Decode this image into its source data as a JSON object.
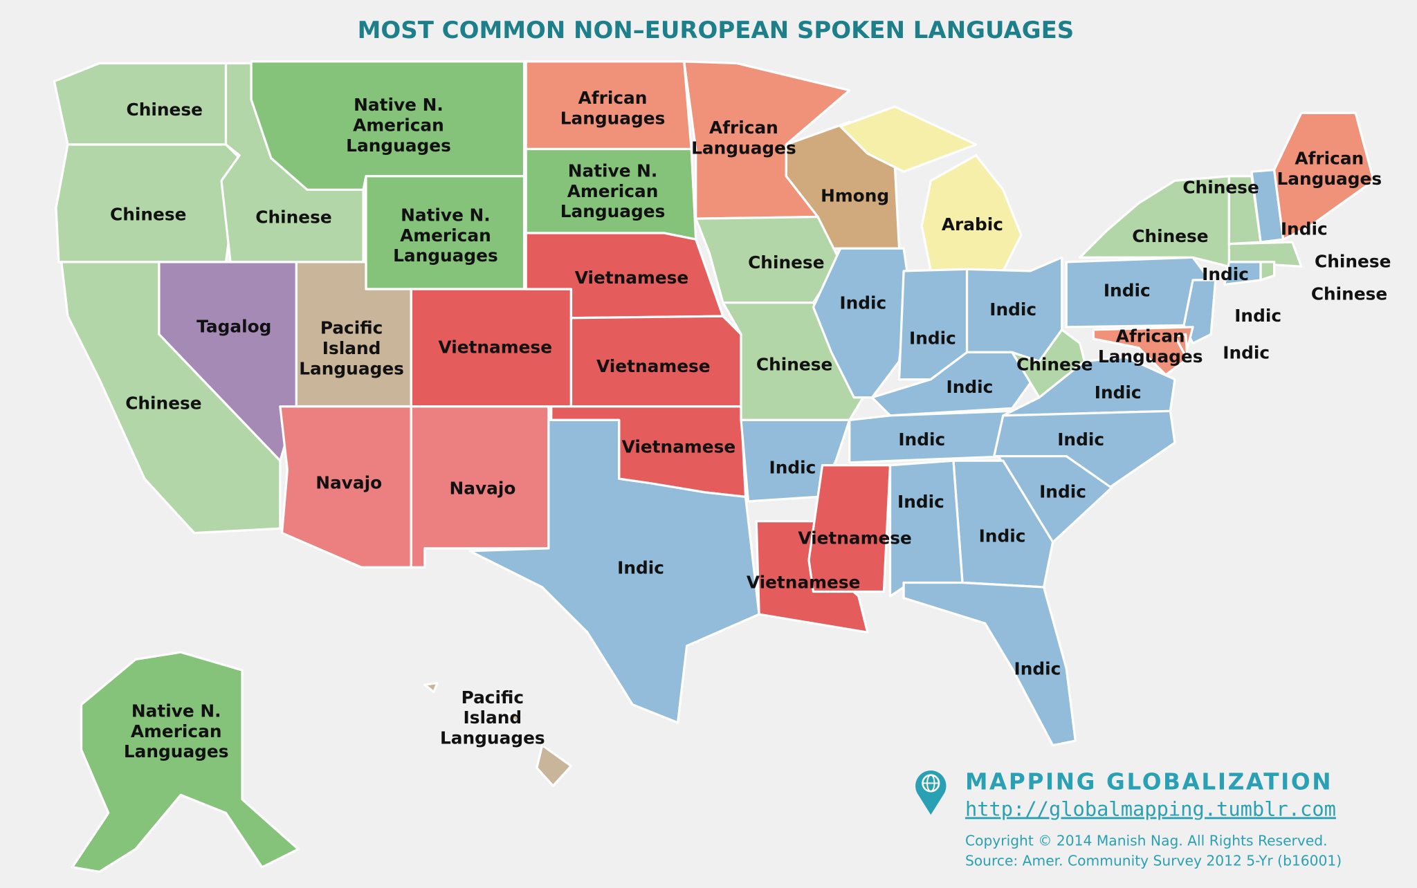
{
  "title": "MOST COMMON NON–EUROPEAN SPOKEN LANGUAGES",
  "labels": [
    {
      "lines": [
        "Chinese"
      ]
    },
    {
      "lines": [
        "Chinese"
      ]
    },
    {
      "lines": [
        "Chinese"
      ]
    },
    {
      "lines": [
        "Native N.",
        "American",
        "Languages"
      ]
    },
    {
      "lines": [
        "Native N.",
        "American",
        "Languages"
      ]
    },
    {
      "lines": [
        "African",
        "Languages"
      ]
    },
    {
      "lines": [
        "Native N.",
        "American",
        "Languages"
      ]
    },
    {
      "lines": [
        "African",
        "Languages"
      ]
    },
    {
      "lines": [
        "Hmong"
      ]
    },
    {
      "lines": [
        "Arabic"
      ]
    },
    {
      "lines": [
        "Chinese"
      ]
    },
    {
      "lines": [
        "Tagalog"
      ]
    },
    {
      "lines": [
        "Pacific",
        "Island",
        "Languages"
      ]
    },
    {
      "lines": [
        "Vietnamese"
      ]
    },
    {
      "lines": [
        "Vietnamese"
      ]
    },
    {
      "lines": [
        "Vietnamese"
      ]
    },
    {
      "lines": [
        "Navajo"
      ]
    },
    {
      "lines": [
        "Navajo"
      ]
    },
    {
      "lines": [
        "Vietnamese"
      ]
    },
    {
      "lines": [
        "Indic"
      ]
    },
    {
      "lines": [
        "Chinese"
      ]
    },
    {
      "lines": [
        "Chinese"
      ]
    },
    {
      "lines": [
        "Indic"
      ]
    },
    {
      "lines": [
        "Vietnamese"
      ]
    },
    {
      "lines": [
        "Vietnamese"
      ]
    },
    {
      "lines": [
        "Indic"
      ]
    },
    {
      "lines": [
        "Indic"
      ]
    },
    {
      "lines": [
        "Indic"
      ]
    },
    {
      "lines": [
        "Indic"
      ]
    },
    {
      "lines": [
        "Indic"
      ]
    },
    {
      "lines": [
        "Chinese"
      ]
    },
    {
      "lines": [
        "Indic"
      ]
    },
    {
      "lines": [
        "Indic"
      ]
    },
    {
      "lines": [
        "Indic"
      ]
    },
    {
      "lines": [
        "Indic"
      ]
    },
    {
      "lines": [
        "Indic"
      ]
    },
    {
      "lines": [
        "Indic"
      ]
    },
    {
      "lines": [
        "Indic"
      ]
    },
    {
      "lines": [
        "Chinese"
      ]
    },
    {
      "lines": [
        "Chinese"
      ]
    },
    {
      "lines": [
        "Indic"
      ]
    },
    {
      "lines": [
        "African",
        "Languages"
      ]
    },
    {
      "lines": [
        "Chinese"
      ]
    },
    {
      "lines": [
        "Chinese"
      ]
    },
    {
      "lines": [
        "Indic"
      ]
    },
    {
      "lines": [
        "Indic"
      ]
    },
    {
      "lines": [
        "African",
        "Languages"
      ]
    },
    {
      "lines": [
        "Indic"
      ]
    },
    {
      "lines": [
        "Native N.",
        "American",
        "Languages"
      ]
    },
    {
      "lines": [
        "Pacific",
        "Island",
        "Languages"
      ]
    }
  ],
  "branding": {
    "name": "MAPPING GLOBALIZATION",
    "url": "http://globalmapping.tumblr.com",
    "copyright": "Copyright © 2014 Manish Nag. All Rights Reserved.",
    "source": "Source: Amer. Community Survey 2012 5-Yr (b16001)"
  }
}
